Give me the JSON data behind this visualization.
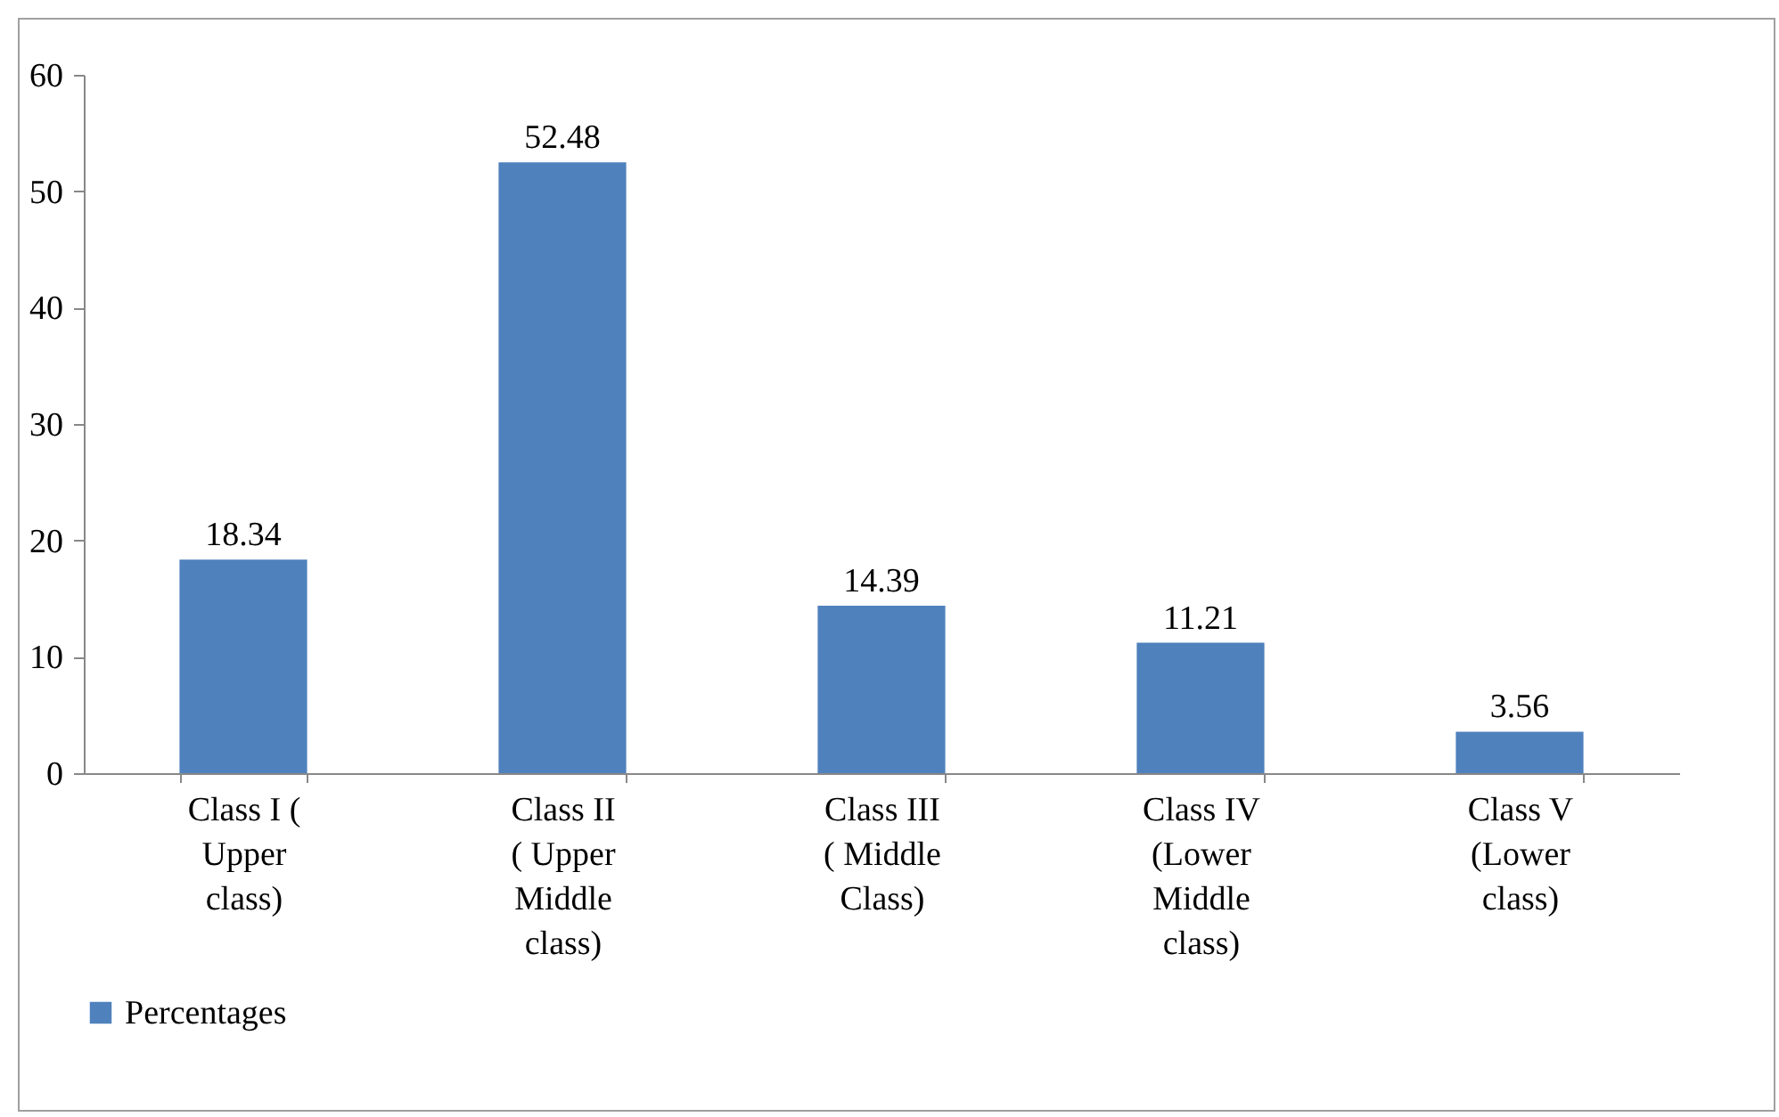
{
  "chart_data": {
    "type": "bar",
    "categories": [
      "Class I ( Upper class)",
      "Class II ( Upper Middle class)",
      "Class III ( Middle Class)",
      "Class IV (Lower Middle class)",
      "Class V (Lower class)"
    ],
    "series": [
      {
        "name": "Percentages",
        "color": "#4f81bd",
        "values": [
          18.34,
          52.48,
          14.39,
          11.21,
          3.56
        ]
      }
    ],
    "ylim": [
      0,
      60
    ],
    "yticks": [
      0,
      10,
      20,
      30,
      40,
      50,
      60
    ],
    "grid": false,
    "legend": "bottom",
    "data_labels": true
  }
}
